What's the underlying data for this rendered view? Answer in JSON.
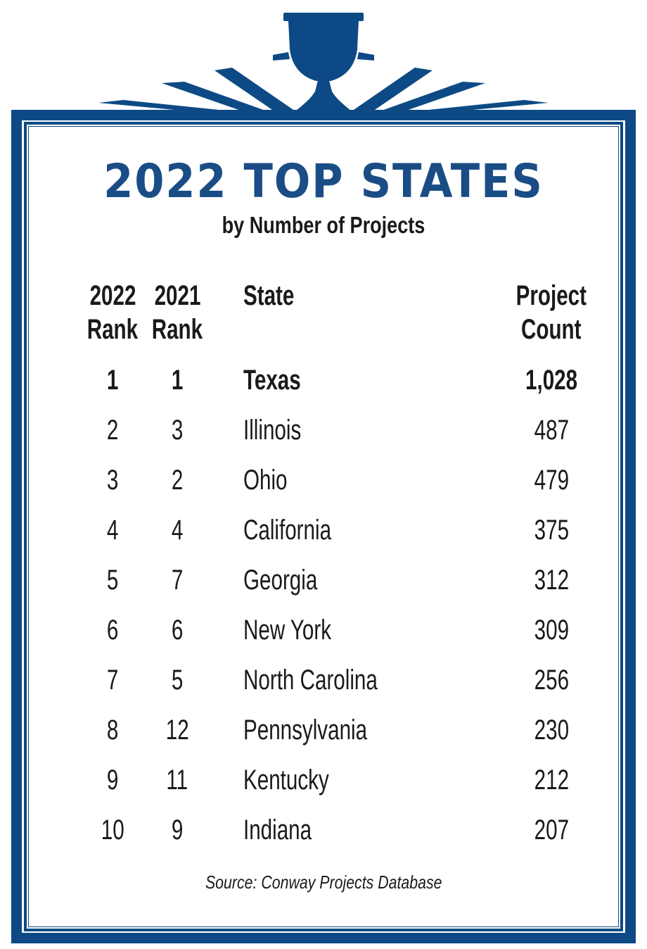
{
  "colors": {
    "frame": "#0d4a85",
    "title": "#1a4d86",
    "text": "#1a1a1a",
    "background": "#ffffff"
  },
  "icons": {
    "header_decoration": "trophy-cup-icon"
  },
  "chart_data": {
    "type": "table",
    "title": "2022 TOP STATES",
    "subtitle": "by Number of Projects",
    "columns": [
      {
        "key": "rank_2022",
        "label_lines": [
          "2022",
          "Rank"
        ]
      },
      {
        "key": "rank_2021",
        "label_lines": [
          "2021",
          "Rank"
        ]
      },
      {
        "key": "state",
        "label_lines": [
          "State"
        ]
      },
      {
        "key": "count",
        "label_lines": [
          "Project",
          "Count"
        ]
      }
    ],
    "rows": [
      {
        "rank_2022": "1",
        "rank_2021": "1",
        "state": "Texas",
        "count": "1,028",
        "highlight": true
      },
      {
        "rank_2022": "2",
        "rank_2021": "3",
        "state": "Illinois",
        "count": "487"
      },
      {
        "rank_2022": "3",
        "rank_2021": "2",
        "state": "Ohio",
        "count": "479"
      },
      {
        "rank_2022": "4",
        "rank_2021": "4",
        "state": "California",
        "count": "375"
      },
      {
        "rank_2022": "5",
        "rank_2021": "7",
        "state": "Georgia",
        "count": "312"
      },
      {
        "rank_2022": "6",
        "rank_2021": "6",
        "state": "New York",
        "count": "309"
      },
      {
        "rank_2022": "7",
        "rank_2021": "5",
        "state": "North Carolina",
        "count": "256"
      },
      {
        "rank_2022": "8",
        "rank_2021": "12",
        "state": "Pennsylvania",
        "count": "230"
      },
      {
        "rank_2022": "9",
        "rank_2021": "11",
        "state": "Kentucky",
        "count": "212"
      },
      {
        "rank_2022": "10",
        "rank_2021": "9",
        "state": "Indiana",
        "count": "207"
      }
    ],
    "source": "Source: Conway Projects Database"
  }
}
